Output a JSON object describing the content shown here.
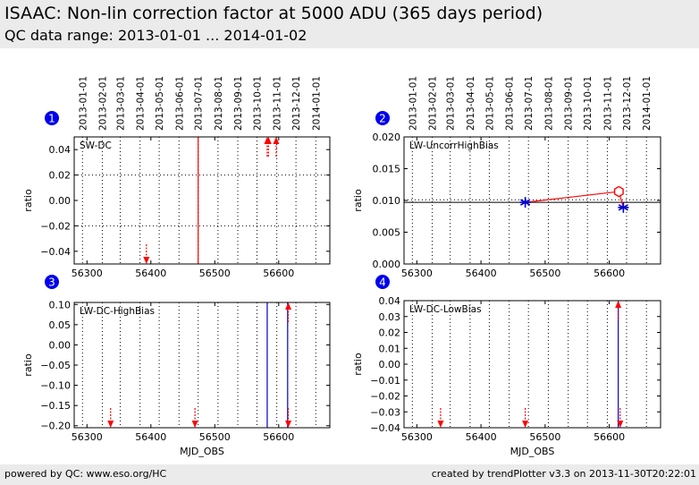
{
  "header": {
    "title": "ISAAC: Non-lin correction factor at 5000 ADU (365 days period)",
    "subtitle": "QC data range: 2013-01-01 ... 2014-01-02"
  },
  "footer": {
    "left": "powered by QC: www.eso.org/HC",
    "right": "created by trendPlotter v3.3 on 2013-11-30T20:22:01"
  },
  "colors": {
    "header_bg": "#ebebeb",
    "red": "#ff0000",
    "blue": "#0000cc",
    "badge": "#0000ee"
  },
  "date_ticks": [
    "2013-01-01",
    "2013-02-01",
    "2013-03-01",
    "2013-04-01",
    "2013-05-01",
    "2013-06-01",
    "2013-07-01",
    "2013-08-01",
    "2013-09-01",
    "2013-10-01",
    "2013-11-01",
    "2013-12-01",
    "2014-01-01"
  ],
  "date_tick_mjd": [
    56293,
    56324,
    56352,
    56383,
    56413,
    56444,
    56474,
    56505,
    56536,
    56566,
    56597,
    56627,
    56658
  ],
  "chart_data": [
    {
      "id": "1",
      "type": "scatter",
      "label": "SW-DC",
      "xlabel": "",
      "ylabel": "ratio",
      "xlim": [
        56280,
        56680
      ],
      "ylim": [
        -0.05,
        0.05
      ],
      "xticks": [
        56300,
        56400,
        56500,
        56600
      ],
      "yticks": [
        0.04,
        0.02,
        0.0,
        -0.02,
        -0.04
      ],
      "ytick_labels": [
        "0.04",
        "0.02",
        "0.00",
        "−0.02",
        "−0.04"
      ],
      "hlines": [
        {
          "y": 0.02,
          "style": "dotted"
        },
        {
          "y": -0.02,
          "style": "dotted"
        }
      ],
      "points": [],
      "lines": [
        {
          "color": "red",
          "x": [
            56474,
            56474
          ],
          "y": [
            0.05,
            -0.05
          ]
        }
      ],
      "arrows": [
        {
          "x": 56393,
          "dir": "down"
        },
        {
          "x": 56582,
          "dir": "up"
        },
        {
          "x": 56584,
          "dir": "up"
        },
        {
          "x": 56596,
          "dir": "up"
        }
      ]
    },
    {
      "id": "2",
      "type": "line",
      "label": "LW-UncorrHighBias",
      "xlabel": "",
      "ylabel": "ratio",
      "xlim": [
        56280,
        56680
      ],
      "ylim": [
        0.0,
        0.02
      ],
      "xticks": [
        56300,
        56400,
        56500,
        56600
      ],
      "yticks": [
        0.02,
        0.015,
        0.01,
        0.005,
        0.0
      ],
      "ytick_labels": [
        "0.020",
        "0.015",
        "0.010",
        "0.005",
        "0.000"
      ],
      "hlines": [
        {
          "y": 0.0097,
          "style": "solid"
        },
        {
          "y": 0.0101,
          "style": "dotted"
        }
      ],
      "points": [
        {
          "x": 56469,
          "y": 0.0097,
          "marker": "star",
          "color": "blue"
        },
        {
          "x": 56622,
          "y": 0.0089,
          "marker": "star",
          "color": "blue"
        },
        {
          "x": 56615,
          "y": 0.0114,
          "marker": "hexagon",
          "color": "red"
        }
      ],
      "lines": [
        {
          "color": "red",
          "x": [
            56469,
            56615
          ],
          "y": [
            0.0097,
            0.0114
          ]
        },
        {
          "color": "red",
          "x": [
            56615,
            56622
          ],
          "y": [
            0.0114,
            0.0089
          ]
        }
      ],
      "arrows": []
    },
    {
      "id": "3",
      "type": "scatter",
      "label": "LW-DC-HighBias",
      "xlabel": "MJD_OBS",
      "ylabel": "ratio",
      "xlim": [
        56280,
        56680
      ],
      "ylim": [
        -0.205,
        0.105
      ],
      "xticks": [
        56300,
        56400,
        56500,
        56600
      ],
      "yticks": [
        0.1,
        0.05,
        0.0,
        -0.05,
        -0.1,
        -0.15,
        -0.2
      ],
      "ytick_labels": [
        "0.10",
        "0.05",
        "0.00",
        "−0.05",
        "−0.10",
        "−0.15",
        "−0.20"
      ],
      "hlines": [],
      "points": [],
      "lines": [
        {
          "color": "blue",
          "x": [
            56582,
            56582
          ],
          "y": [
            0.105,
            -0.205
          ]
        },
        {
          "color": "blue",
          "x": [
            56614,
            56614
          ],
          "y": [
            0.105,
            -0.205
          ]
        }
      ],
      "arrows": [
        {
          "x": 56337,
          "dir": "down"
        },
        {
          "x": 56469,
          "dir": "down"
        },
        {
          "x": 56615,
          "dir": "up"
        },
        {
          "x": 56615,
          "dir": "down"
        }
      ]
    },
    {
      "id": "4",
      "type": "scatter",
      "label": "LW-DC-LowBias",
      "xlabel": "MJD_OBS",
      "ylabel": "ratio",
      "xlim": [
        56280,
        56680
      ],
      "ylim": [
        -0.04,
        0.04
      ],
      "xticks": [
        56300,
        56400,
        56500,
        56600
      ],
      "yticks": [
        0.04,
        0.03,
        0.02,
        0.01,
        0.0,
        -0.01,
        -0.02,
        -0.03,
        -0.04
      ],
      "ytick_labels": [
        "0.04",
        "0.03",
        "0.02",
        "0.01",
        "0.00",
        "−0.01",
        "−0.02",
        "−0.03",
        "−0.04"
      ],
      "hlines": [],
      "points": [],
      "lines": [
        {
          "color": "blue",
          "x": [
            56614,
            56614
          ],
          "y": [
            0.04,
            -0.04
          ]
        }
      ],
      "arrows": [
        {
          "x": 56337,
          "dir": "down"
        },
        {
          "x": 56469,
          "dir": "down"
        },
        {
          "x": 56614,
          "dir": "up"
        },
        {
          "x": 56617,
          "dir": "down"
        }
      ]
    }
  ]
}
